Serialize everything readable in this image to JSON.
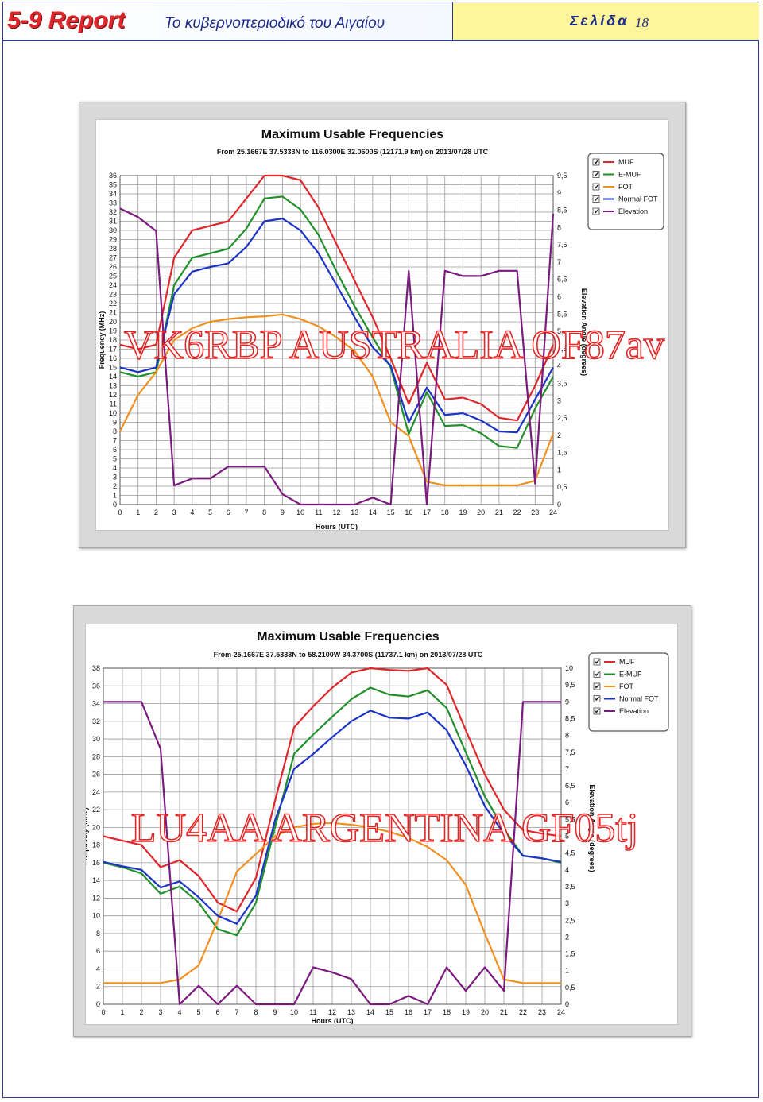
{
  "header": {
    "report_title": "5-9 Report",
    "subtitle": "Το κυβερνοπεριοδικό του Αιγαίου",
    "page_label": "Σελίδα",
    "page_number": "18"
  },
  "colors": {
    "MUF": "#e0262b",
    "E-MUF": "#21902b",
    "FOT": "#f0901e",
    "Normal FOT": "#1c33c8",
    "Elevation": "#7b1a7e",
    "header_bar": "#fff59a",
    "report_red": "#e0262b",
    "header_blue": "#1a2a8a"
  },
  "chart_data": [
    {
      "type": "line",
      "title": "Maximum Usable Frequencies",
      "subtitle": "From 25.1667E 37.5333N to 116.0300E 32.0600S (12171.9 km) on 2013/07/28 UTC",
      "xlabel": "Hours (UTC)",
      "ylabel": "Frequency (MHz)",
      "y2label": "Elevation Angle (degrees)",
      "watermark": "VK6RBP AUSTRALIA OF87av",
      "x": [
        0,
        1,
        2,
        3,
        4,
        5,
        6,
        7,
        8,
        9,
        10,
        11,
        12,
        13,
        14,
        15,
        16,
        17,
        18,
        19,
        20,
        21,
        22,
        23,
        24
      ],
      "ylim": [
        0,
        36
      ],
      "y2lim": [
        0,
        9.5
      ],
      "y_ticks": [
        "0",
        "1",
        "2",
        "3",
        "4",
        "5",
        "6",
        "7",
        "8",
        "9",
        "10",
        "11",
        "12",
        "13",
        "14",
        "15",
        "16",
        "17",
        "18",
        "19",
        "20",
        "21",
        "22",
        "23",
        "24",
        "25",
        "26",
        "27",
        "28",
        "29",
        "30",
        "31",
        "32",
        "33",
        "34",
        "35",
        "36"
      ],
      "y2_ticks": [
        "0",
        "0,5",
        "1",
        "1,5",
        "2",
        "2,5",
        "3",
        "3,5",
        "4",
        "4,5",
        "5",
        "5,5",
        "6",
        "6,5",
        "7",
        "7,5",
        "8",
        "8,5",
        "9",
        "9,5"
      ],
      "x_ticks": [
        "0",
        "1",
        "2",
        "3",
        "4",
        "5",
        "6",
        "7",
        "8",
        "9",
        "10",
        "11",
        "12",
        "13",
        "14",
        "15",
        "16",
        "17",
        "18",
        "19",
        "20",
        "21",
        "22",
        "23",
        "24"
      ],
      "grid": true,
      "legend_position": "top-right",
      "series": [
        {
          "name": "MUF",
          "axis": "left",
          "values": [
            17.5,
            17,
            17.5,
            27,
            30,
            30.5,
            31,
            33.5,
            36.8,
            37,
            35.5,
            32.5,
            28.5,
            24.5,
            20.5,
            16,
            11,
            15.5,
            11.5,
            11.7,
            11,
            9.5,
            9.2,
            13,
            17.5
          ]
        },
        {
          "name": "E-MUF",
          "axis": "left",
          "values": [
            14.5,
            14,
            14.5,
            24,
            27,
            27.5,
            28,
            30.2,
            33.5,
            33.7,
            32.3,
            29.5,
            25.5,
            21.7,
            18.3,
            15,
            7.7,
            12.3,
            8.6,
            8.7,
            7.8,
            6.4,
            6.2,
            10.5,
            14
          ]
        },
        {
          "name": "FOT",
          "axis": "left",
          "values": [
            8,
            12,
            14.5,
            18,
            19.3,
            20,
            20.3,
            20.5,
            20.6,
            20.8,
            20.3,
            19.5,
            18.3,
            16.8,
            14,
            9,
            7.5,
            2.5,
            2.1,
            2.1,
            2.1,
            2.1,
            2.1,
            2.6,
            7.8
          ]
        },
        {
          "name": "Normal FOT",
          "axis": "left",
          "values": [
            15,
            14.5,
            15,
            23,
            25.5,
            26,
            26.4,
            28.2,
            31,
            31.3,
            30,
            27.5,
            24,
            20.5,
            17.2,
            15.2,
            9,
            12.8,
            9.8,
            10,
            9.2,
            8,
            7.9,
            11.5,
            15
          ]
        },
        {
          "name": "Elevation",
          "axis": "right",
          "values": [
            8.55,
            8.3,
            7.9,
            0.55,
            0.75,
            0.75,
            1.1,
            1.1,
            1.1,
            0.3,
            0,
            0,
            0,
            0,
            0.2,
            0,
            6.75,
            0,
            6.75,
            6.6,
            6.6,
            6.75,
            6.75,
            0.6,
            8.4
          ]
        }
      ]
    },
    {
      "type": "line",
      "title": "Maximum Usable Frequencies",
      "subtitle": "From 25.1667E 37.5333N to 58.2100W 34.3700S (11737.1 km) on 2013/07/28 UTC",
      "xlabel": "Hours (UTC)",
      "ylabel": "Frequency (MHz)",
      "y2label": "Elevation Angle (degrees)",
      "watermark": "LU4AA ARGENTINA GF05tj",
      "x": [
        0,
        1,
        2,
        3,
        4,
        5,
        6,
        7,
        8,
        9,
        10,
        11,
        12,
        13,
        14,
        15,
        16,
        17,
        18,
        19,
        20,
        21,
        22,
        23,
        24
      ],
      "ylim": [
        0,
        38
      ],
      "y2lim": [
        0,
        10
      ],
      "y_ticks": [
        "0",
        "2",
        "4",
        "6",
        "8",
        "10",
        "12",
        "14",
        "16",
        "18",
        "20",
        "22",
        "24",
        "26",
        "28",
        "30",
        "32",
        "34",
        "36",
        "38"
      ],
      "y2_ticks": [
        "0",
        "0,5",
        "1",
        "1,5",
        "2",
        "2,5",
        "3",
        "3,5",
        "4",
        "4,5",
        "5",
        "5,5",
        "6",
        "6,5",
        "7",
        "7,5",
        "8",
        "8,5",
        "9",
        "9,5",
        "10"
      ],
      "x_ticks": [
        "0",
        "1",
        "2",
        "3",
        "4",
        "5",
        "6",
        "7",
        "8",
        "9",
        "10",
        "11",
        "12",
        "13",
        "14",
        "15",
        "16",
        "17",
        "18",
        "19",
        "20",
        "21",
        "22",
        "23",
        "24"
      ],
      "grid": true,
      "legend_position": "top-right",
      "series": [
        {
          "name": "MUF",
          "axis": "left",
          "values": [
            19,
            18.5,
            18,
            15.5,
            16.3,
            14.5,
            11.5,
            10.5,
            14.3,
            23,
            31.3,
            33.7,
            35.8,
            37.5,
            38.4,
            37.8,
            37.7,
            38.2,
            36.1,
            31,
            26,
            22,
            19.7,
            19.3,
            19
          ]
        },
        {
          "name": "E-MUF",
          "axis": "left",
          "values": [
            16,
            15.5,
            14.8,
            12.5,
            13.3,
            11.5,
            8.5,
            7.8,
            11.5,
            20,
            28.3,
            30.5,
            32.5,
            34.5,
            35.8,
            35,
            34.8,
            35.5,
            33.5,
            28.5,
            23.5,
            19.8,
            16.8,
            16.5,
            16
          ]
        },
        {
          "name": "FOT",
          "axis": "left",
          "values": [
            2.4,
            2.4,
            2.4,
            2.4,
            2.8,
            4.4,
            9.5,
            15,
            17,
            19,
            20,
            20.4,
            20.5,
            20.3,
            20,
            19.5,
            18.8,
            17.8,
            16.3,
            13.5,
            8,
            2.8,
            2.4,
            2.4,
            2.4
          ]
        },
        {
          "name": "Normal FOT",
          "axis": "left",
          "values": [
            16.1,
            15.6,
            15.2,
            13.2,
            13.9,
            12.1,
            10,
            9.1,
            12.3,
            20.8,
            26.6,
            28.3,
            30.2,
            32,
            33.2,
            32.4,
            32.3,
            33,
            31,
            27,
            22.4,
            19.3,
            16.8,
            16.5,
            16.1
          ]
        },
        {
          "name": "Elevation",
          "axis": "right",
          "values": [
            9,
            9,
            9,
            7.6,
            0,
            0.55,
            0,
            0.55,
            0,
            0,
            0,
            1.1,
            0.95,
            0.75,
            0,
            0,
            0.25,
            0,
            1.1,
            0.4,
            1.1,
            0.4,
            9,
            9,
            9
          ]
        }
      ]
    }
  ]
}
